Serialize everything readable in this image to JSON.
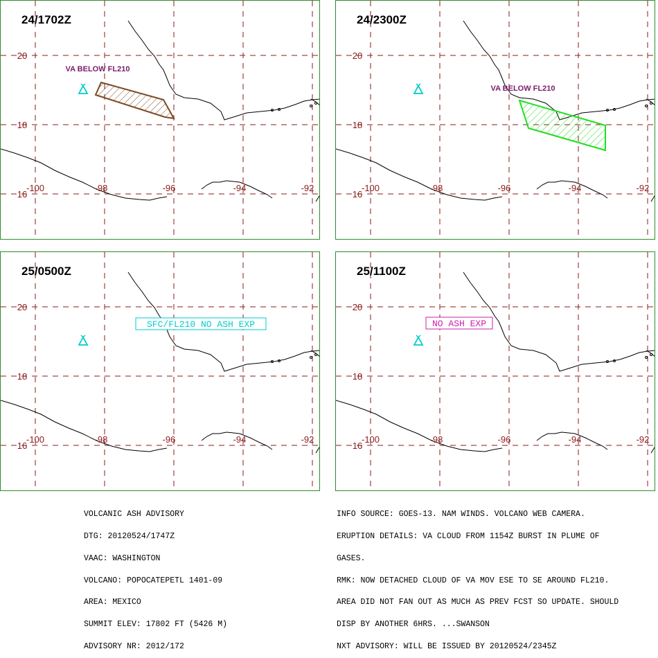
{
  "map": {
    "latitude_labels": [
      "20",
      "18",
      "16"
    ],
    "longitude_labels": [
      "-100",
      "-98",
      "-96",
      "-94",
      "-92"
    ],
    "colors": {
      "grid": "#8b1a1a",
      "coast": "#000000",
      "volcano": "#00cccc",
      "panel_border": "#2e8b2e",
      "ash_observed": "#7b4a25",
      "ash_forecast": "#22dd22",
      "label_purple": "#7b1a6b",
      "label_cyan": "#00cccc",
      "label_magenta": "#cc22aa"
    },
    "volcano_icon": "volcano-icon"
  },
  "panels": [
    {
      "title": "24/1702Z",
      "label": "VA BELOW FL210"
    },
    {
      "title": "24/2300Z",
      "label": "VA BELOW FL210"
    },
    {
      "title": "25/0500Z",
      "label": "SFC/FL210 NO ASH EXP"
    },
    {
      "title": "25/1100Z",
      "label": "NO ASH EXP"
    }
  ],
  "advisory_left": [
    "VOLCANIC ASH ADVISORY",
    "DTG: 20120524/1747Z",
    "VAAC: WASHINGTON",
    "VOLCANO: POPOCATEPETL 1401-09",
    "AREA: MEXICO",
    "SUMMIT ELEV: 17802 FT (5426 M)",
    "ADVISORY NR: 2012/172"
  ],
  "advisory_right": [
    "INFO SOURCE: GOES-13. NAM WINDS. VOLCANO WEB CAMERA.",
    "ERUPTION DETAILS: VA CLOUD FROM 1154Z BURST IN PLUME OF",
    "GASES.",
    "RMK: NOW DETACHED CLOUD OF VA MOV ESE TO SE AROUND FL210.",
    "AREA DID NOT FAN OUT AS MUCH AS PREV FCST SO UPDATE. SHOULD",
    "DISP BY ANOTHER 6HRS. ...SWANSON",
    "NXT ADVISORY: WILL BE ISSUED BY 20120524/2345Z"
  ]
}
